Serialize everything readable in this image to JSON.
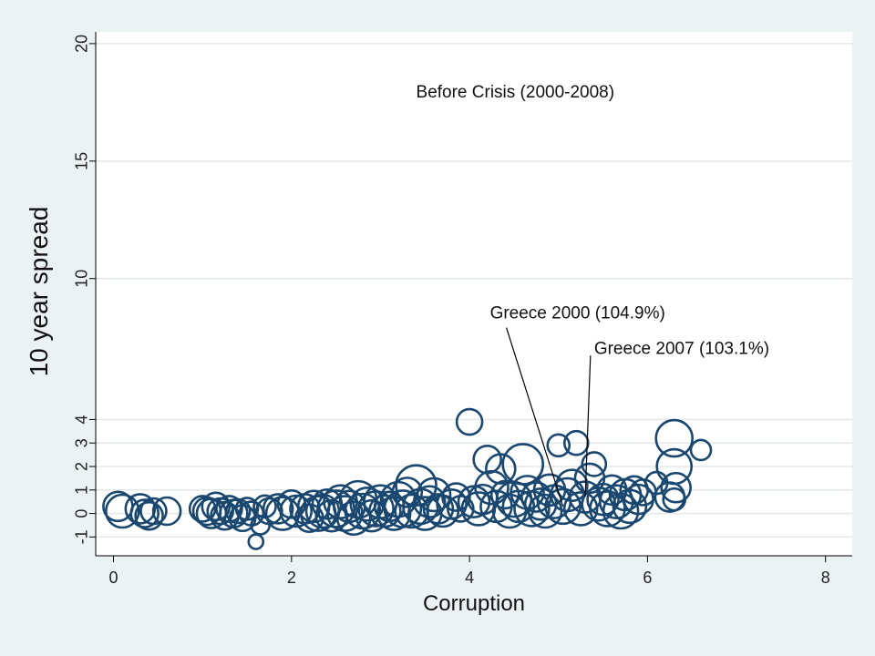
{
  "chart_data": {
    "type": "scatter",
    "title": "",
    "xlabel": "Corruption",
    "ylabel": "10 year spread",
    "xlim": [
      -0.2,
      8.3
    ],
    "ylim": [
      -1.8,
      20.5
    ],
    "x_ticks": [
      0,
      2,
      4,
      6,
      8
    ],
    "y_ticks": [
      -1,
      0,
      1,
      2,
      3,
      4,
      10,
      15,
      20
    ],
    "grid": true,
    "marker": "hollow-circle",
    "marker_color": "#1a476f",
    "annotations": [
      {
        "text": "Before Crisis (2000-2008)",
        "x": 3.4,
        "y": 17.7
      },
      {
        "text": "Greece 2000 (104.9%)",
        "x": 4.23,
        "y": 8.3,
        "point": [
          5.05,
          0.3
        ]
      },
      {
        "text": "Greece 2007 (103.1%)",
        "x": 5.4,
        "y": 6.8,
        "point": [
          5.3,
          0.7
        ]
      }
    ],
    "points": [
      [
        0.05,
        0.3,
        16
      ],
      [
        0.1,
        0.1,
        18
      ],
      [
        0.3,
        0.2,
        16
      ],
      [
        0.35,
        0.0,
        15
      ],
      [
        0.4,
        -0.1,
        15
      ],
      [
        0.45,
        0.1,
        14
      ],
      [
        0.6,
        0.1,
        15
      ],
      [
        1.0,
        0.2,
        14
      ],
      [
        1.05,
        0.1,
        15
      ],
      [
        1.1,
        0.0,
        16
      ],
      [
        1.15,
        0.3,
        15
      ],
      [
        1.2,
        0.1,
        14
      ],
      [
        1.25,
        -0.1,
        15
      ],
      [
        1.3,
        0.2,
        14
      ],
      [
        1.35,
        0.0,
        15
      ],
      [
        1.4,
        0.1,
        13
      ],
      [
        1.45,
        -0.2,
        14
      ],
      [
        1.5,
        0.2,
        12
      ],
      [
        1.55,
        0.0,
        13
      ],
      [
        1.6,
        -1.2,
        8
      ],
      [
        1.65,
        -0.5,
        10
      ],
      [
        1.7,
        0.3,
        12
      ],
      [
        1.75,
        0.1,
        14
      ],
      [
        1.85,
        0.2,
        16
      ],
      [
        1.9,
        0.0,
        18
      ],
      [
        2.0,
        0.4,
        15
      ],
      [
        2.05,
        0.1,
        17
      ],
      [
        2.15,
        0.2,
        16
      ],
      [
        2.2,
        -0.2,
        15
      ],
      [
        2.25,
        0.3,
        17
      ],
      [
        2.3,
        0.0,
        19
      ],
      [
        2.35,
        0.1,
        18
      ],
      [
        2.4,
        0.4,
        16
      ],
      [
        2.45,
        -0.1,
        17
      ],
      [
        2.5,
        0.2,
        20
      ],
      [
        2.55,
        0.5,
        18
      ],
      [
        2.6,
        0.0,
        19
      ],
      [
        2.65,
        0.3,
        17
      ],
      [
        2.7,
        -0.2,
        18
      ],
      [
        2.75,
        0.6,
        20
      ],
      [
        2.8,
        0.1,
        19
      ],
      [
        2.85,
        0.4,
        18
      ],
      [
        2.9,
        -0.1,
        17
      ],
      [
        2.95,
        0.2,
        19
      ],
      [
        3.0,
        0.5,
        18
      ],
      [
        3.05,
        0.1,
        17
      ],
      [
        3.1,
        0.3,
        16
      ],
      [
        3.15,
        0.0,
        18
      ],
      [
        3.2,
        0.6,
        19
      ],
      [
        3.25,
        0.2,
        20
      ],
      [
        3.3,
        0.9,
        16
      ],
      [
        3.35,
        0.1,
        18
      ],
      [
        3.4,
        1.2,
        22
      ],
      [
        3.45,
        0.3,
        19
      ],
      [
        3.5,
        0.0,
        18
      ],
      [
        3.55,
        0.5,
        17
      ],
      [
        3.6,
        0.8,
        18
      ],
      [
        3.65,
        0.2,
        16
      ],
      [
        3.7,
        0.1,
        17
      ],
      [
        3.8,
        0.4,
        16
      ],
      [
        3.85,
        0.7,
        15
      ],
      [
        3.9,
        0.2,
        14
      ],
      [
        4.0,
        3.9,
        14
      ],
      [
        4.05,
        0.5,
        17
      ],
      [
        4.1,
        0.2,
        18
      ],
      [
        4.15,
        0.6,
        16
      ],
      [
        4.2,
        2.3,
        15
      ],
      [
        4.25,
        1.1,
        18
      ],
      [
        4.3,
        0.3,
        17
      ],
      [
        4.35,
        1.9,
        16
      ],
      [
        4.4,
        0.8,
        15
      ],
      [
        4.45,
        0.1,
        18
      ],
      [
        4.5,
        0.6,
        19
      ],
      [
        4.55,
        0.3,
        17
      ],
      [
        4.6,
        2.1,
        22
      ],
      [
        4.65,
        0.9,
        18
      ],
      [
        4.7,
        0.2,
        19
      ],
      [
        4.75,
        0.7,
        16
      ],
      [
        4.8,
        0.4,
        17
      ],
      [
        4.85,
        0.1,
        18
      ],
      [
        4.9,
        1.0,
        17
      ],
      [
        4.95,
        0.5,
        18
      ],
      [
        5.0,
        2.9,
        12
      ],
      [
        5.05,
        0.3,
        19
      ],
      [
        5.1,
        0.8,
        18
      ],
      [
        5.15,
        1.2,
        17
      ],
      [
        5.2,
        3.0,
        13
      ],
      [
        5.25,
        0.2,
        18
      ],
      [
        5.3,
        0.7,
        17
      ],
      [
        5.35,
        1.5,
        16
      ],
      [
        5.4,
        2.1,
        13
      ],
      [
        5.45,
        0.4,
        18
      ],
      [
        5.5,
        0.6,
        17
      ],
      [
        5.55,
        0.2,
        19
      ],
      [
        5.6,
        1.0,
        16
      ],
      [
        5.65,
        0.5,
        18
      ],
      [
        5.7,
        0.1,
        19
      ],
      [
        5.75,
        0.8,
        17
      ],
      [
        5.8,
        0.3,
        18
      ],
      [
        5.85,
        1.0,
        15
      ],
      [
        5.9,
        0.6,
        16
      ],
      [
        5.95,
        0.9,
        14
      ],
      [
        6.1,
        1.3,
        12
      ],
      [
        6.25,
        0.7,
        16
      ],
      [
        6.3,
        3.2,
        20
      ],
      [
        6.3,
        2.0,
        19
      ],
      [
        6.32,
        1.1,
        16
      ],
      [
        6.3,
        0.6,
        12
      ],
      [
        6.6,
        2.7,
        11
      ]
    ]
  }
}
